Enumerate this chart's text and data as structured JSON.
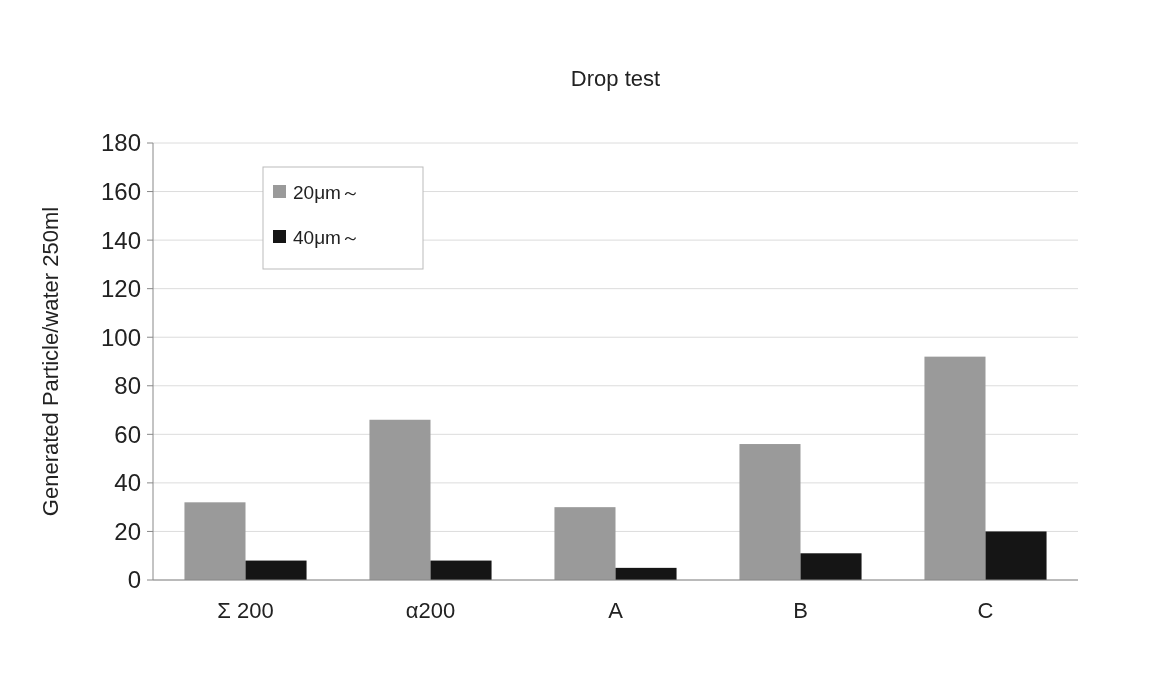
{
  "chart_data": {
    "type": "bar",
    "title": "Drop test",
    "ylabel": "Generated Particle/water 250ml",
    "categories": [
      "Σ 200",
      "α200",
      "A",
      "B",
      "C"
    ],
    "series": [
      {
        "name": "20μm～",
        "color": "#9a9a9a",
        "values": [
          32,
          66,
          30,
          56,
          92
        ]
      },
      {
        "name": "40μm～",
        "color": "#151515",
        "values": [
          8,
          8,
          5,
          11,
          20
        ]
      }
    ],
    "ylim": [
      0,
      180
    ],
    "yticks": [
      0,
      20,
      40,
      60,
      80,
      100,
      120,
      140,
      160,
      180
    ],
    "grid": "y",
    "legend": "top left"
  }
}
